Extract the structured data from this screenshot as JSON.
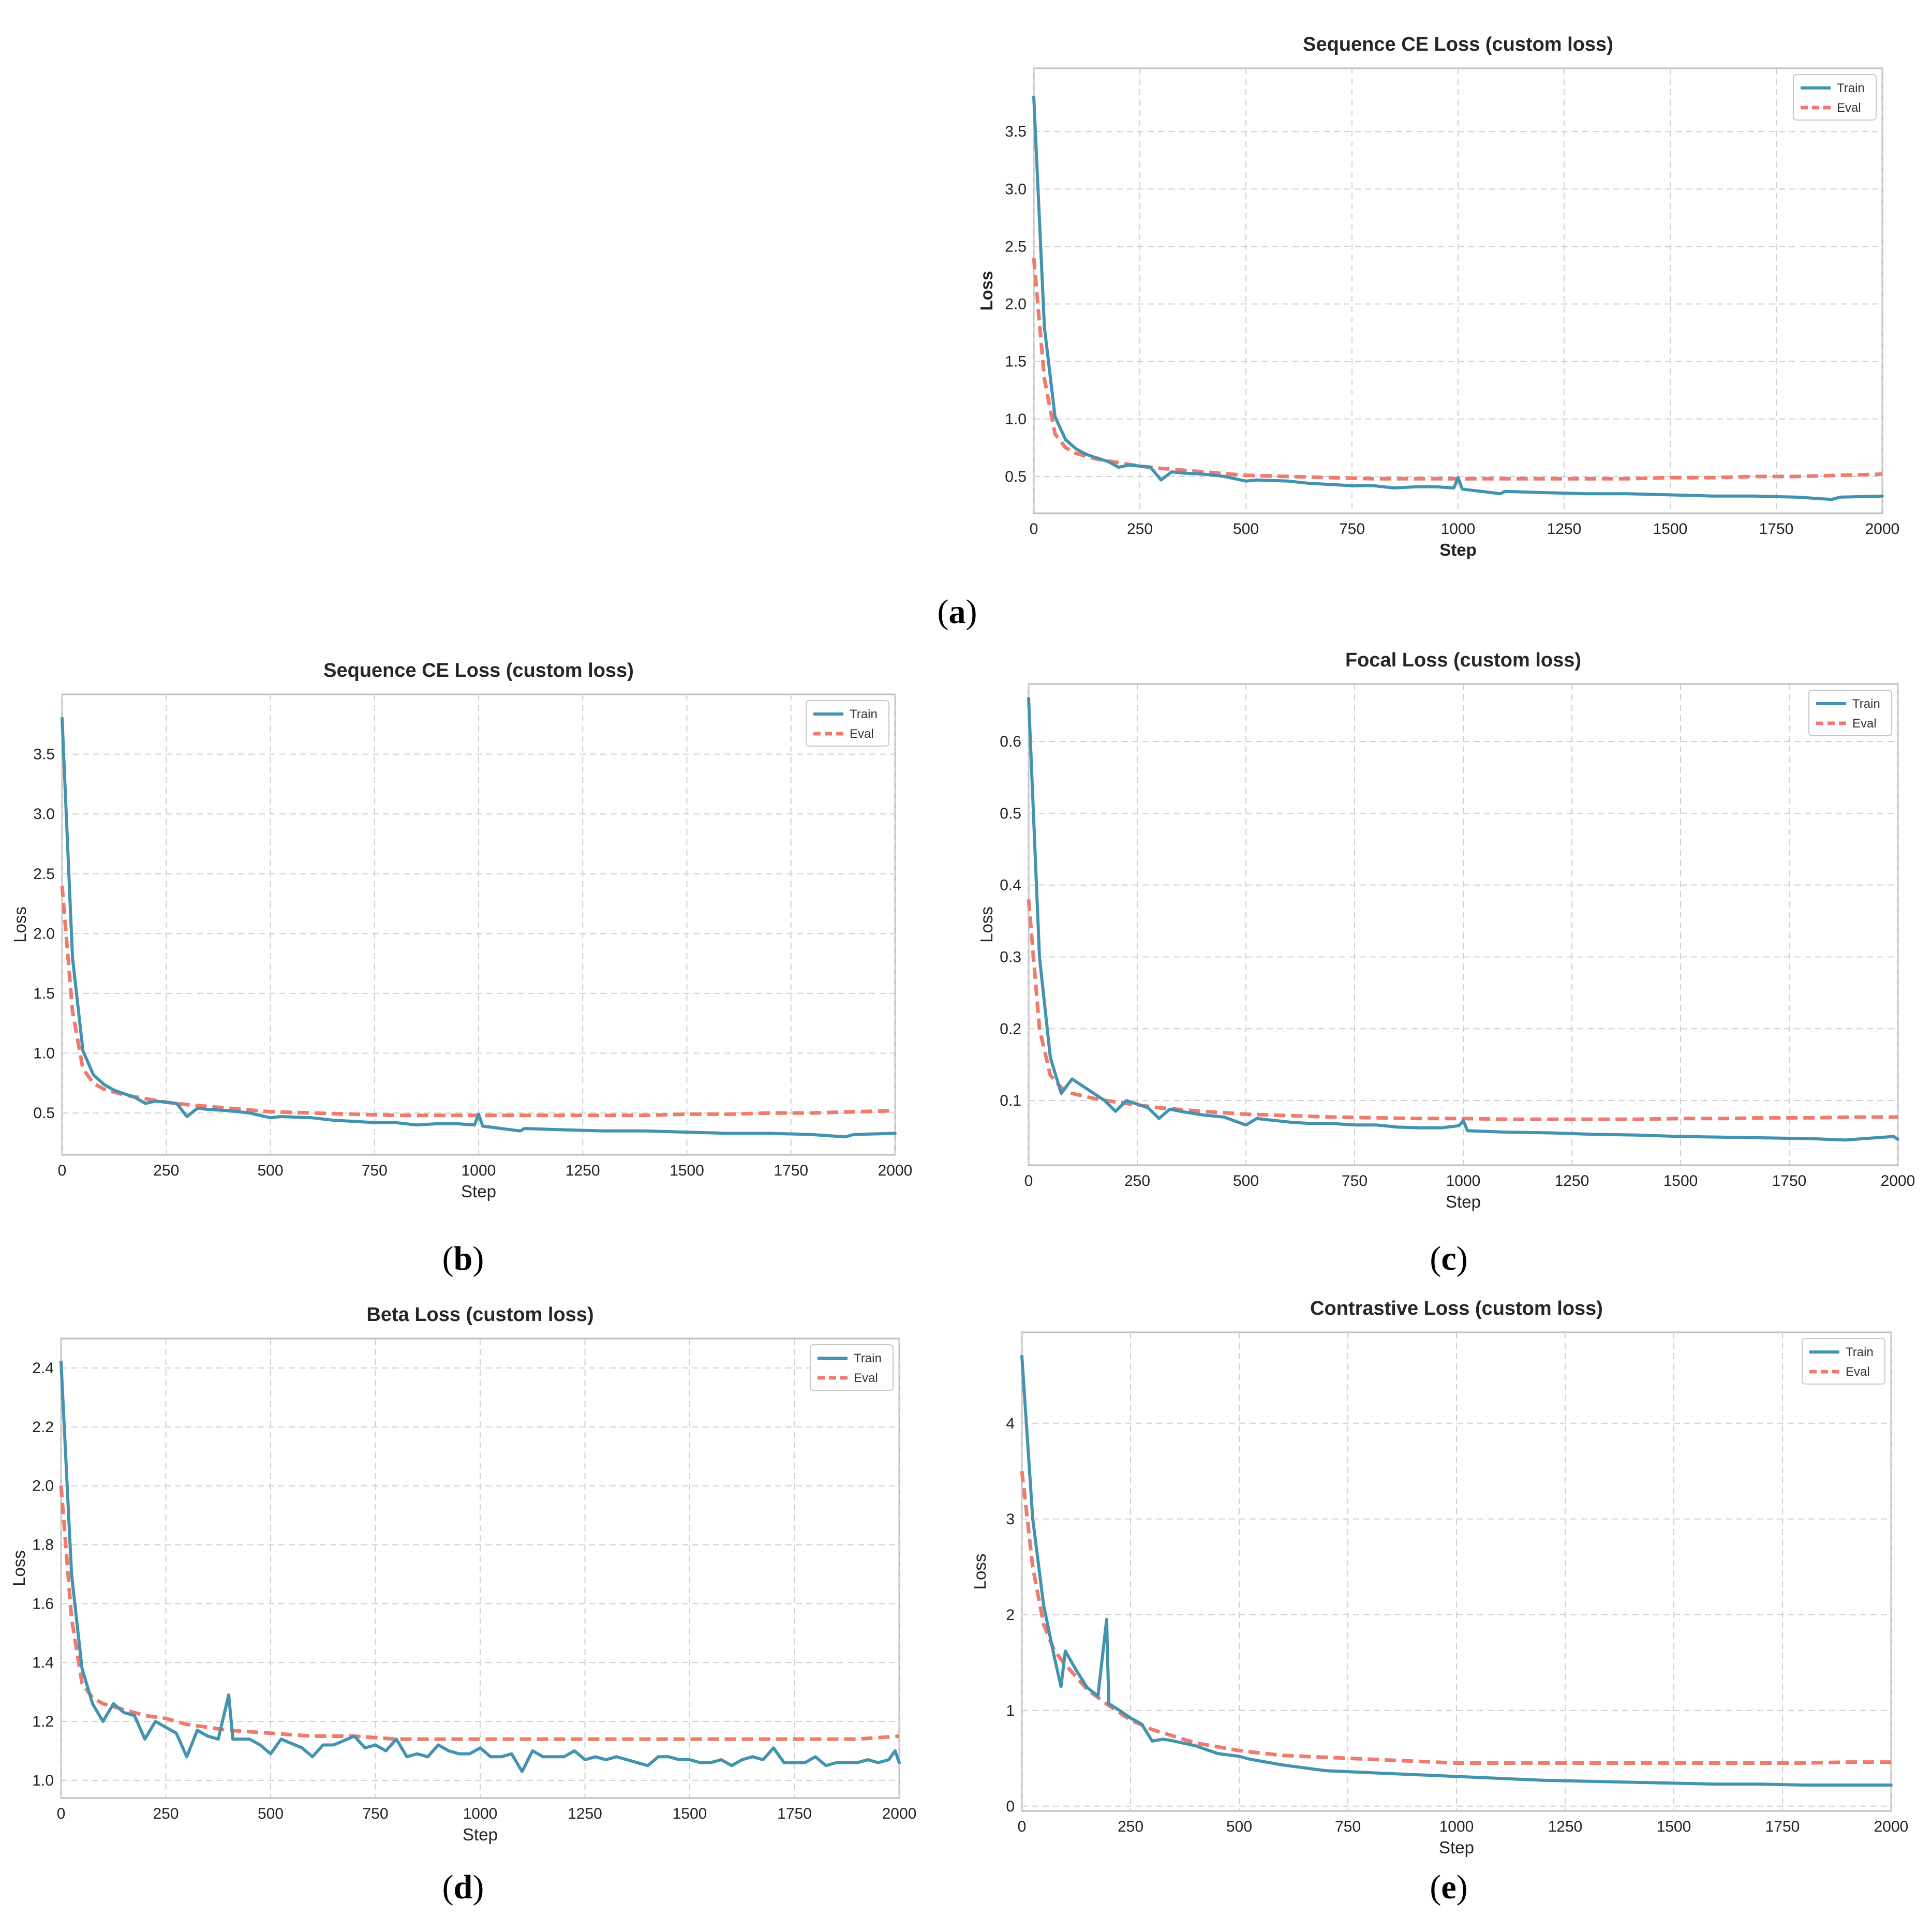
{
  "colors": {
    "train": "#4393b0",
    "eval": "#ee7b6e"
  },
  "chart_data": [
    {
      "id": "a",
      "type": "line",
      "caption": "a",
      "title": "Sequence CE Loss (custom loss)",
      "xlabel": "Step",
      "ylabel": "Loss",
      "xlim": [
        0,
        2000
      ],
      "ylim": [
        0.18,
        4.05
      ],
      "xticks": [
        0,
        250,
        500,
        750,
        1000,
        1250,
        1500,
        1750,
        2000
      ],
      "yticks": [
        0.5,
        1.0,
        1.5,
        2.0,
        2.5,
        3.0,
        3.5
      ],
      "ytick_labels": [
        "0.5",
        "1.0",
        "1.5",
        "2.0",
        "2.5",
        "3.0",
        "3.5"
      ],
      "legend": [
        "Train",
        "Eval"
      ],
      "series": [
        {
          "name": "Train",
          "x": [
            0,
            25,
            50,
            75,
            100,
            125,
            150,
            175,
            200,
            225,
            250,
            275,
            300,
            325,
            350,
            400,
            450,
            500,
            525,
            600,
            650,
            700,
            750,
            800,
            850,
            900,
            950,
            990,
            1000,
            1010,
            1100,
            1110,
            1200,
            1300,
            1400,
            1500,
            1600,
            1700,
            1800,
            1880,
            1900,
            2000
          ],
          "y": [
            3.8,
            1.8,
            1.02,
            0.82,
            0.74,
            0.69,
            0.66,
            0.63,
            0.58,
            0.6,
            0.59,
            0.58,
            0.47,
            0.54,
            0.53,
            0.52,
            0.5,
            0.46,
            0.47,
            0.46,
            0.44,
            0.43,
            0.42,
            0.42,
            0.4,
            0.41,
            0.41,
            0.4,
            0.49,
            0.39,
            0.35,
            0.37,
            0.36,
            0.35,
            0.35,
            0.34,
            0.33,
            0.33,
            0.32,
            0.3,
            0.32,
            0.33
          ]
        },
        {
          "name": "Eval",
          "x": [
            0,
            25,
            50,
            75,
            100,
            150,
            200,
            250,
            300,
            400,
            500,
            600,
            700,
            800,
            900,
            1000,
            1100,
            1200,
            1300,
            1400,
            1500,
            1600,
            1700,
            1800,
            1900,
            2000
          ],
          "y": [
            2.4,
            1.35,
            0.87,
            0.75,
            0.7,
            0.65,
            0.62,
            0.59,
            0.57,
            0.54,
            0.51,
            0.5,
            0.49,
            0.48,
            0.48,
            0.48,
            0.48,
            0.48,
            0.48,
            0.48,
            0.49,
            0.49,
            0.5,
            0.5,
            0.51,
            0.52
          ]
        }
      ]
    },
    {
      "id": "b",
      "type": "line",
      "caption": "b",
      "title": "Sequence CE Loss (custom loss)",
      "xlabel": "Step",
      "ylabel": "Loss",
      "xlim": [
        0,
        2000
      ],
      "ylim": [
        0.15,
        4.0
      ],
      "xticks": [
        0,
        250,
        500,
        750,
        1000,
        1250,
        1500,
        1750,
        2000
      ],
      "yticks": [
        0.5,
        1.0,
        1.5,
        2.0,
        2.5,
        3.0,
        3.5
      ],
      "ytick_labels": [
        "0.5",
        "1.0",
        "1.5",
        "2.0",
        "2.5",
        "3.0",
        "3.5"
      ],
      "legend": [
        "Train",
        "Eval"
      ],
      "series": [
        {
          "name": "Train",
          "x": [
            0,
            25,
            50,
            75,
            100,
            125,
            150,
            175,
            200,
            225,
            250,
            275,
            300,
            325,
            350,
            400,
            450,
            500,
            525,
            600,
            650,
            700,
            750,
            800,
            850,
            900,
            950,
            990,
            1000,
            1010,
            1100,
            1110,
            1200,
            1300,
            1400,
            1500,
            1600,
            1700,
            1800,
            1880,
            1900,
            2000
          ],
          "y": [
            3.8,
            1.8,
            1.02,
            0.82,
            0.74,
            0.69,
            0.66,
            0.63,
            0.58,
            0.6,
            0.59,
            0.58,
            0.47,
            0.54,
            0.53,
            0.52,
            0.5,
            0.46,
            0.47,
            0.46,
            0.44,
            0.43,
            0.42,
            0.42,
            0.4,
            0.41,
            0.41,
            0.4,
            0.49,
            0.39,
            0.35,
            0.37,
            0.36,
            0.35,
            0.35,
            0.34,
            0.33,
            0.33,
            0.32,
            0.3,
            0.32,
            0.33
          ]
        },
        {
          "name": "Eval",
          "x": [
            0,
            25,
            50,
            75,
            100,
            150,
            200,
            250,
            300,
            400,
            500,
            600,
            700,
            800,
            900,
            1000,
            1100,
            1200,
            1300,
            1400,
            1500,
            1600,
            1700,
            1800,
            1900,
            2000
          ],
          "y": [
            2.4,
            1.35,
            0.87,
            0.75,
            0.7,
            0.65,
            0.62,
            0.59,
            0.57,
            0.54,
            0.51,
            0.5,
            0.49,
            0.48,
            0.48,
            0.48,
            0.48,
            0.48,
            0.48,
            0.48,
            0.49,
            0.49,
            0.5,
            0.5,
            0.51,
            0.52
          ]
        }
      ]
    },
    {
      "id": "c",
      "type": "line",
      "caption": "c",
      "title": "Focal Loss (custom loss)",
      "xlabel": "Step",
      "ylabel": "Loss",
      "xlim": [
        0,
        2000
      ],
      "ylim": [
        0.01,
        0.68
      ],
      "xticks": [
        0,
        250,
        500,
        750,
        1000,
        1250,
        1500,
        1750,
        2000
      ],
      "yticks": [
        0.1,
        0.2,
        0.3,
        0.4,
        0.5,
        0.6
      ],
      "ytick_labels": [
        "0.1",
        "0.2",
        "0.3",
        "0.4",
        "0.5",
        "0.6"
      ],
      "legend": [
        "Train",
        "Eval"
      ],
      "series": [
        {
          "name": "Train",
          "x": [
            0,
            25,
            50,
            75,
            100,
            125,
            150,
            175,
            200,
            225,
            250,
            275,
            300,
            325,
            350,
            400,
            450,
            500,
            525,
            600,
            650,
            700,
            750,
            800,
            850,
            900,
            950,
            990,
            1000,
            1010,
            1100,
            1200,
            1300,
            1400,
            1500,
            1600,
            1700,
            1800,
            1880,
            1900,
            1990,
            2000
          ],
          "y": [
            0.66,
            0.3,
            0.16,
            0.11,
            0.13,
            0.12,
            0.11,
            0.1,
            0.085,
            0.1,
            0.095,
            0.09,
            0.075,
            0.088,
            0.085,
            0.08,
            0.077,
            0.066,
            0.075,
            0.07,
            0.068,
            0.068,
            0.066,
            0.066,
            0.063,
            0.062,
            0.062,
            0.065,
            0.072,
            0.058,
            0.056,
            0.055,
            0.053,
            0.052,
            0.05,
            0.049,
            0.048,
            0.047,
            0.045,
            0.046,
            0.05,
            0.046
          ]
        },
        {
          "name": "Eval",
          "x": [
            0,
            25,
            50,
            75,
            100,
            150,
            200,
            250,
            300,
            400,
            500,
            600,
            700,
            800,
            900,
            1000,
            1100,
            1200,
            1300,
            1400,
            1500,
            1600,
            1700,
            1800,
            1900,
            2000
          ],
          "y": [
            0.38,
            0.2,
            0.135,
            0.118,
            0.11,
            0.103,
            0.098,
            0.094,
            0.09,
            0.085,
            0.081,
            0.079,
            0.077,
            0.076,
            0.075,
            0.075,
            0.074,
            0.074,
            0.074,
            0.074,
            0.075,
            0.075,
            0.076,
            0.076,
            0.077,
            0.077
          ]
        }
      ]
    },
    {
      "id": "d",
      "type": "line",
      "caption": "d",
      "title": "Beta Loss (custom loss)",
      "xlabel": "Step",
      "ylabel": "Loss",
      "xlim": [
        0,
        2000
      ],
      "ylim": [
        0.94,
        2.5
      ],
      "xticks": [
        0,
        250,
        500,
        750,
        1000,
        1250,
        1500,
        1750,
        2000
      ],
      "yticks": [
        1.0,
        1.2,
        1.4,
        1.6,
        1.8,
        2.0,
        2.2,
        2.4
      ],
      "ytick_labels": [
        "1.0",
        "1.2",
        "1.4",
        "1.6",
        "1.8",
        "2.0",
        "2.2",
        "2.4"
      ],
      "legend": [
        "Train",
        "Eval"
      ],
      "series": [
        {
          "name": "Train",
          "x": [
            0,
            25,
            50,
            75,
            100,
            125,
            150,
            175,
            200,
            225,
            250,
            275,
            300,
            325,
            350,
            375,
            400,
            410,
            450,
            475,
            500,
            525,
            575,
            600,
            625,
            650,
            700,
            725,
            750,
            775,
            800,
            825,
            850,
            875,
            900,
            925,
            950,
            975,
            1000,
            1025,
            1050,
            1075,
            1100,
            1125,
            1150,
            1175,
            1200,
            1225,
            1250,
            1275,
            1300,
            1325,
            1350,
            1375,
            1400,
            1425,
            1450,
            1475,
            1500,
            1525,
            1550,
            1575,
            1600,
            1625,
            1650,
            1675,
            1700,
            1725,
            1750,
            1775,
            1800,
            1825,
            1850,
            1875,
            1900,
            1925,
            1950,
            1975,
            1990,
            2000
          ],
          "y": [
            2.42,
            1.7,
            1.38,
            1.26,
            1.2,
            1.26,
            1.23,
            1.22,
            1.14,
            1.2,
            1.18,
            1.16,
            1.08,
            1.17,
            1.15,
            1.14,
            1.29,
            1.14,
            1.14,
            1.12,
            1.09,
            1.14,
            1.11,
            1.08,
            1.12,
            1.12,
            1.15,
            1.11,
            1.12,
            1.1,
            1.14,
            1.08,
            1.09,
            1.08,
            1.12,
            1.1,
            1.09,
            1.09,
            1.11,
            1.08,
            1.08,
            1.09,
            1.03,
            1.1,
            1.08,
            1.08,
            1.08,
            1.1,
            1.07,
            1.08,
            1.07,
            1.08,
            1.07,
            1.06,
            1.05,
            1.08,
            1.08,
            1.07,
            1.07,
            1.06,
            1.06,
            1.07,
            1.05,
            1.07,
            1.08,
            1.07,
            1.11,
            1.06,
            1.06,
            1.06,
            1.08,
            1.05,
            1.06,
            1.06,
            1.06,
            1.07,
            1.06,
            1.07,
            1.1,
            1.06
          ]
        },
        {
          "name": "Eval",
          "x": [
            0,
            25,
            50,
            75,
            100,
            150,
            200,
            250,
            300,
            400,
            500,
            600,
            700,
            800,
            900,
            1000,
            1100,
            1200,
            1300,
            1400,
            1500,
            1600,
            1700,
            1800,
            1900,
            2000
          ],
          "y": [
            2.0,
            1.55,
            1.33,
            1.28,
            1.26,
            1.24,
            1.22,
            1.21,
            1.19,
            1.17,
            1.16,
            1.15,
            1.15,
            1.14,
            1.14,
            1.14,
            1.14,
            1.14,
            1.14,
            1.14,
            1.14,
            1.14,
            1.14,
            1.14,
            1.14,
            1.15
          ]
        }
      ]
    },
    {
      "id": "e",
      "type": "line",
      "caption": "e",
      "title": "Contrastive Loss (custom loss)",
      "xlabel": "Step",
      "ylabel": "Loss",
      "xlim": [
        0,
        2000
      ],
      "ylim": [
        -0.05,
        4.95
      ],
      "xticks": [
        0,
        250,
        500,
        750,
        1000,
        1250,
        1500,
        1750,
        2000
      ],
      "yticks": [
        0,
        1,
        2,
        3,
        4
      ],
      "ytick_labels": [
        "0",
        "1",
        "2",
        "3",
        "4"
      ],
      "legend": [
        "Train",
        "Eval"
      ],
      "series": [
        {
          "name": "Train",
          "x": [
            0,
            25,
            50,
            75,
            90,
            100,
            125,
            150,
            175,
            195,
            200,
            225,
            250,
            275,
            300,
            325,
            350,
            400,
            450,
            500,
            525,
            600,
            650,
            700,
            750,
            800,
            850,
            900,
            950,
            1000,
            1100,
            1200,
            1300,
            1400,
            1500,
            1600,
            1700,
            1800,
            1900,
            2000
          ],
          "y": [
            4.7,
            3.0,
            2.1,
            1.55,
            1.25,
            1.62,
            1.42,
            1.24,
            1.15,
            1.95,
            1.07,
            1.0,
            0.92,
            0.86,
            0.68,
            0.7,
            0.68,
            0.63,
            0.55,
            0.52,
            0.49,
            0.43,
            0.4,
            0.37,
            0.36,
            0.35,
            0.34,
            0.33,
            0.32,
            0.31,
            0.29,
            0.27,
            0.26,
            0.25,
            0.24,
            0.23,
            0.23,
            0.22,
            0.22,
            0.22
          ]
        },
        {
          "name": "Eval",
          "x": [
            0,
            25,
            50,
            75,
            100,
            150,
            200,
            250,
            300,
            400,
            500,
            600,
            700,
            800,
            900,
            1000,
            1100,
            1200,
            1300,
            1400,
            1500,
            1600,
            1700,
            1800,
            1900,
            2000
          ],
          "y": [
            3.5,
            2.5,
            1.9,
            1.62,
            1.48,
            1.22,
            1.05,
            0.9,
            0.8,
            0.66,
            0.58,
            0.53,
            0.51,
            0.49,
            0.47,
            0.45,
            0.45,
            0.45,
            0.45,
            0.45,
            0.45,
            0.45,
            0.45,
            0.45,
            0.46,
            0.46
          ]
        }
      ]
    }
  ]
}
